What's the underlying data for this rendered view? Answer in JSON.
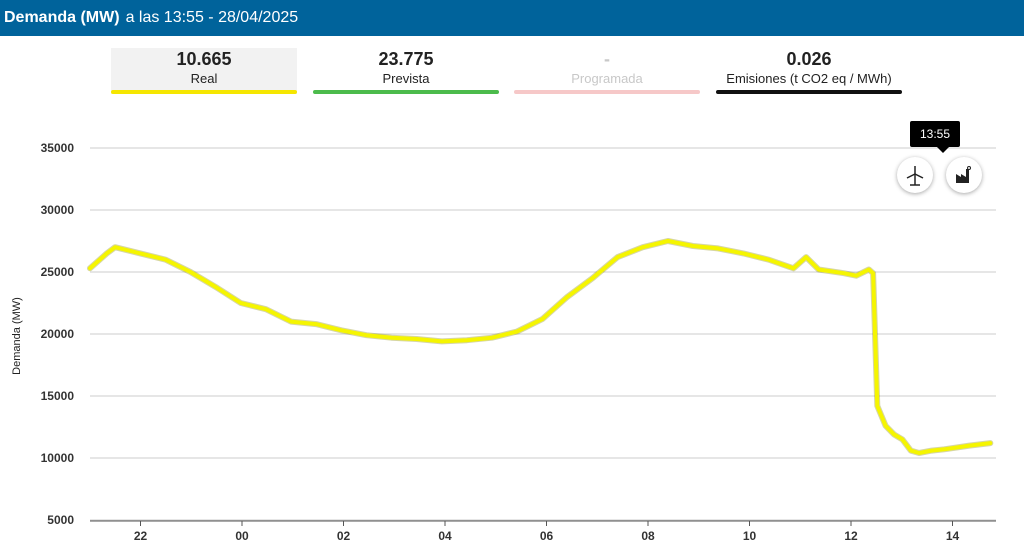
{
  "header": {
    "title_bold": "Demanda (MW)",
    "title_rest": "a las 13:55 - 28/04/2025"
  },
  "cards": [
    {
      "value": "10.665",
      "label": "Real",
      "color": "#f5e600",
      "disabled": false
    },
    {
      "value": "23.775",
      "label": "Prevista",
      "color": "#4cbb4c",
      "disabled": false
    },
    {
      "value": "-",
      "label": "Programada",
      "color": "#f6c8c8",
      "disabled": true
    },
    {
      "value": "0.026",
      "label": "Emisiones (t CO2 eq / MWh)",
      "color": "#111111",
      "disabled": false
    }
  ],
  "tooltip": {
    "time": "13:55"
  },
  "icons": {
    "wind": "wind-turbine-icon",
    "factory": "factory-icon"
  },
  "colors": {
    "header": "#00639b",
    "line": "#f5f500",
    "grid": "#cccccc"
  },
  "chart_data": {
    "type": "line",
    "ylabel": "Demanda (MW)",
    "ylim": [
      5000,
      35000
    ],
    "yticks": [
      5000,
      10000,
      15000,
      20000,
      25000,
      30000,
      35000
    ],
    "xticks": [
      "22",
      "00",
      "02",
      "04",
      "06",
      "08",
      "10",
      "12",
      "14"
    ],
    "series": [
      {
        "x": [
          "21:00",
          "21:20",
          "21:30",
          "22:00",
          "22:30",
          "23:00",
          "23:30",
          "00:00",
          "00:30",
          "01:00",
          "01:30",
          "02:00",
          "02:30",
          "03:00",
          "03:30",
          "04:00",
          "04:30",
          "05:00",
          "05:30",
          "06:00",
          "06:30",
          "07:00",
          "07:30",
          "08:00",
          "08:30",
          "09:00",
          "09:30",
          "10:00",
          "10:30",
          "11:00",
          "11:15",
          "11:30",
          "12:00",
          "12:15",
          "12:30",
          "12:35",
          "12:40",
          "12:50",
          "13:00",
          "13:10",
          "13:20",
          "13:30",
          "13:45",
          "14:00",
          "14:30",
          "14:55"
        ],
        "values": [
          25300,
          26500,
          27000,
          26500,
          26000,
          25000,
          23800,
          22500,
          22000,
          21000,
          20800,
          20300,
          19900,
          19700,
          19600,
          19400,
          19500,
          19700,
          20200,
          21200,
          23000,
          24500,
          26200,
          27000,
          27500,
          27100,
          26900,
          26500,
          26000,
          25300,
          26200,
          25200,
          24900,
          24700,
          25200,
          24900,
          14200,
          12600,
          11900,
          11500,
          10600,
          10400,
          10600,
          10700,
          11000,
          11200
        ]
      }
    ]
  }
}
